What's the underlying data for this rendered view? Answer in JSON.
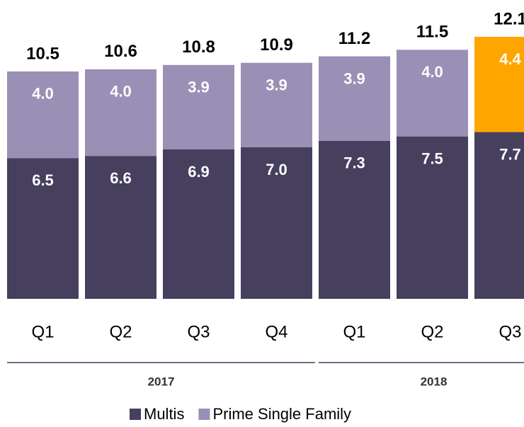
{
  "chart_data": {
    "type": "stacked_bar",
    "categories": [
      "Q1",
      "Q2",
      "Q3",
      "Q4",
      "Q1",
      "Q2",
      "Q3"
    ],
    "category_groups": [
      "2017",
      "2017",
      "2017",
      "2017",
      "2018",
      "2018",
      "2018"
    ],
    "series": [
      {
        "name": "Multis",
        "color": "#463f5e",
        "values": [
          6.5,
          6.6,
          6.9,
          7.0,
          7.3,
          7.5,
          7.7
        ]
      },
      {
        "name": "Prime Single Family",
        "color": "#9a8fb5",
        "values": [
          4.0,
          4.0,
          3.9,
          3.9,
          3.9,
          4.0,
          4.4
        ],
        "colors": [
          "#9a8fb5",
          "#9a8fb5",
          "#9a8fb5",
          "#9a8fb5",
          "#9a8fb5",
          "#9a8fb5",
          "#ffa500"
        ],
        "value_labels": [
          "4.0",
          "4.0",
          "3.9",
          "3.9",
          "3.9",
          "4.0",
          "4.4"
        ]
      }
    ],
    "series_value_labels_0": [
      "6.5",
      "6.6",
      "6.9",
      "7.0",
      "7.3",
      "7.5",
      "7.7"
    ],
    "totals": [
      10.5,
      10.6,
      10.8,
      10.9,
      11.2,
      11.5,
      12.1
    ],
    "legend": "bottom"
  }
}
